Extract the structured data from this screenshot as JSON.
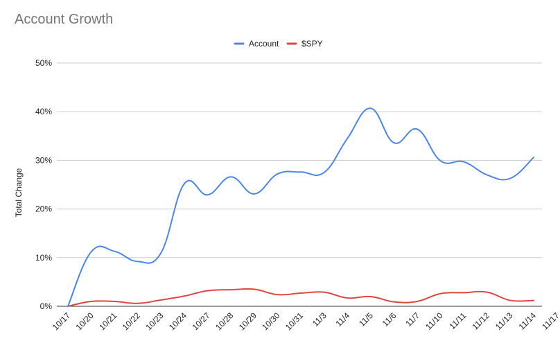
{
  "chart_data": {
    "type": "line",
    "title": "Account Growth",
    "xlabel": "",
    "ylabel": "Total Change",
    "ylim": [
      0,
      50
    ],
    "yticks": [
      "0%",
      "10%",
      "20%",
      "30%",
      "40%",
      "50%"
    ],
    "grid": true,
    "legend_position": "top",
    "categories": [
      "10/17",
      "10/20",
      "10/21",
      "10/22",
      "10/23",
      "10/24",
      "10/27",
      "10/28",
      "10/29",
      "10/30",
      "10/31",
      "11/3",
      "11/4",
      "11/5",
      "11/6",
      "11/7",
      "11/10",
      "11/11",
      "11/12",
      "11/13",
      "11/14",
      "11/17"
    ],
    "series": [
      {
        "name": "Account",
        "color": "#4a86e8",
        "values": [
          0,
          11.2,
          11.3,
          9.2,
          11.0,
          25.2,
          22.9,
          26.6,
          23.1,
          27.2,
          27.6,
          27.5,
          34.5,
          40.7,
          33.6,
          36.4,
          29.9,
          29.7,
          27.0,
          26.3,
          30.6,
          null
        ]
      },
      {
        "name": "$SPY",
        "color": "#e0463f",
        "values": [
          0,
          1.0,
          1.0,
          0.6,
          1.3,
          2.1,
          3.2,
          3.4,
          3.5,
          2.4,
          2.7,
          2.9,
          1.7,
          2.0,
          0.9,
          1.0,
          2.6,
          2.8,
          2.9,
          1.2,
          1.2,
          null
        ]
      }
    ]
  }
}
